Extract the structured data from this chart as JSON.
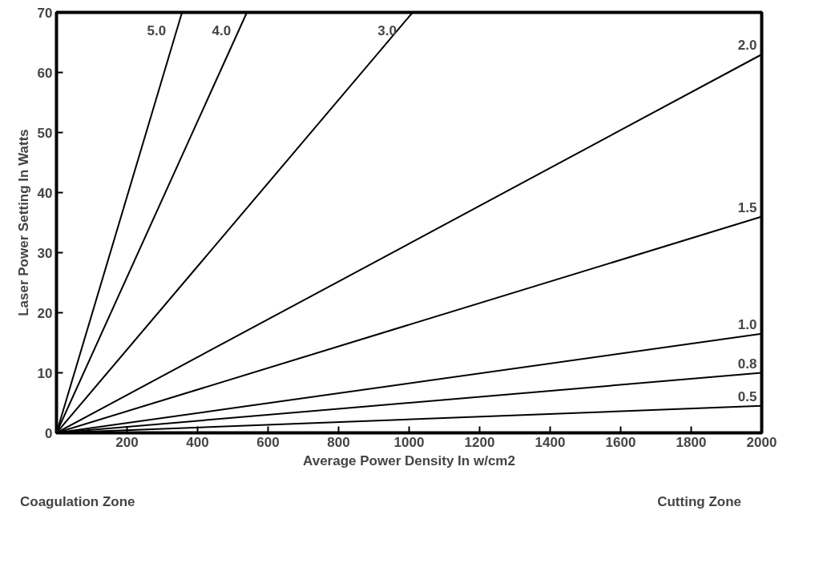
{
  "chart_data": {
    "type": "line",
    "xlabel": "Average Power Density In w/cm2",
    "ylabel": "Laser Power Setting In Watts",
    "series": [
      {
        "name": "5.0",
        "color": "#000000",
        "x": [
          0,
          356
        ],
        "values": [
          0,
          70
        ]
      },
      {
        "name": "4.0",
        "color": "#000000",
        "x": [
          0,
          540
        ],
        "values": [
          0,
          70
        ]
      },
      {
        "name": "3.0",
        "color": "#000000",
        "x": [
          0,
          1010
        ],
        "values": [
          0,
          70
        ]
      },
      {
        "name": "2.0",
        "color": "#000000",
        "x": [
          0,
          2000
        ],
        "values": [
          0,
          63
        ]
      },
      {
        "name": "1.5",
        "color": "#000000",
        "x": [
          0,
          2000
        ],
        "values": [
          0,
          36
        ]
      },
      {
        "name": "1.0",
        "color": "#000000",
        "x": [
          0,
          2000
        ],
        "values": [
          0,
          16.5
        ]
      },
      {
        "name": "0.8",
        "color": "#000000",
        "x": [
          0,
          2000
        ],
        "values": [
          0,
          10
        ]
      },
      {
        "name": "0.5",
        "color": "#000000",
        "x": [
          0,
          2000
        ],
        "values": [
          0,
          4.5
        ]
      }
    ],
    "xlim": [
      0,
      2000
    ],
    "ylim": [
      0,
      70
    ],
    "xticks": [
      200,
      400,
      600,
      800,
      1000,
      1200,
      1400,
      1600,
      1800,
      2000
    ],
    "yticks": [
      0,
      10,
      20,
      30,
      40,
      50,
      60,
      70
    ],
    "grid": false,
    "marker": "none",
    "line_style": "solid",
    "annotations": [
      "Coagulation Zone",
      "Cutting Zone"
    ]
  }
}
